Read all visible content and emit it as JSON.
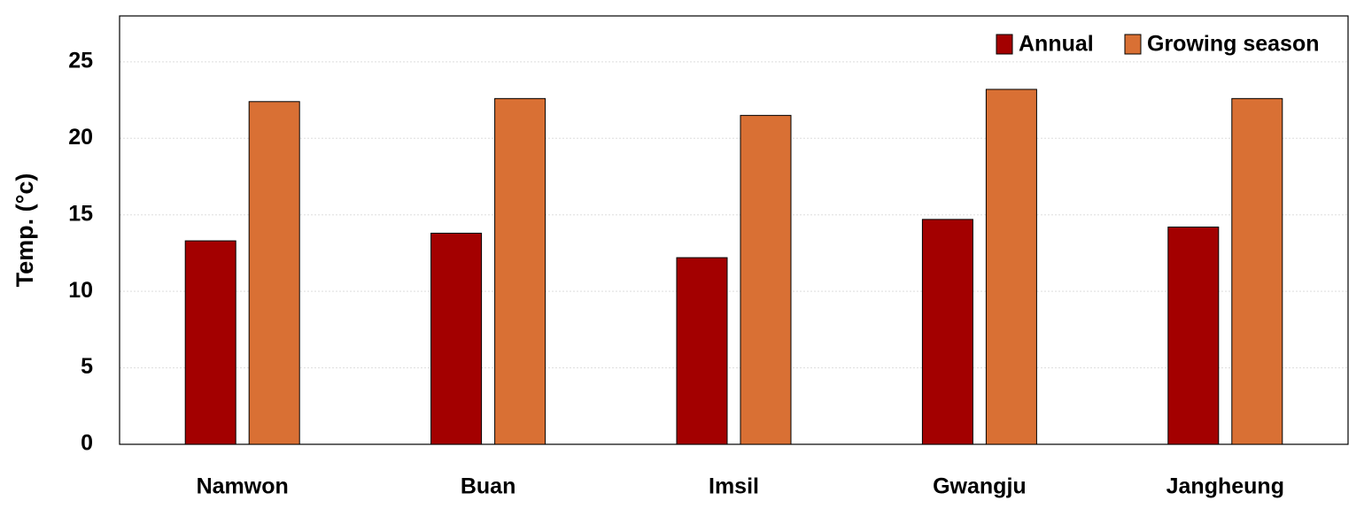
{
  "chart_data": {
    "type": "bar",
    "y_label": "Temp. (°c)",
    "categories": [
      "Namwon",
      "Buan",
      "Imsil",
      "Gwangju",
      "Jangheung"
    ],
    "series": [
      {
        "name": "Annual",
        "color": "#a30000",
        "values": [
          13.3,
          13.8,
          12.2,
          14.7,
          14.2
        ]
      },
      {
        "name": "Growing season",
        "color": "#d97034",
        "values": [
          22.4,
          22.6,
          21.5,
          23.2,
          22.6
        ]
      }
    ],
    "ylim": [
      0,
      28
    ],
    "yticks": [
      0,
      5,
      10,
      15,
      20,
      25
    ],
    "grid": true,
    "legend": "top-right"
  }
}
